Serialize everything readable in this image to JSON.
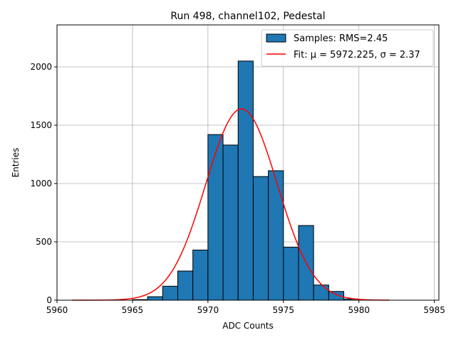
{
  "chart_data": {
    "type": "bar",
    "title": "Run 498, channel102, Pedestal",
    "xlabel": "ADC Counts",
    "ylabel": "Entries",
    "xlim": [
      5960,
      5985.3
    ],
    "ylim": [
      0,
      2360
    ],
    "xticks": [
      5960,
      5965,
      5970,
      5975,
      5980,
      5985
    ],
    "yticks": [
      0,
      500,
      1000,
      1500,
      2000
    ],
    "grid": true,
    "legend_position": "top-right",
    "colors": {
      "bar_fill": "#1f77b4",
      "bar_edge": "#000000",
      "fit_line": "#ff0000",
      "grid": "#b0b0b0"
    },
    "series": [
      {
        "name": "Samples: RMS=2.45",
        "kind": "histogram",
        "bins": [
          {
            "x0": 5965,
            "x1": 5966,
            "value": 5
          },
          {
            "x0": 5966,
            "x1": 5967,
            "value": 30
          },
          {
            "x0": 5967,
            "x1": 5968,
            "value": 120
          },
          {
            "x0": 5968,
            "x1": 5969,
            "value": 250
          },
          {
            "x0": 5969,
            "x1": 5970,
            "value": 430
          },
          {
            "x0": 5970,
            "x1": 5971,
            "value": 1420
          },
          {
            "x0": 5971,
            "x1": 5972,
            "value": 1330
          },
          {
            "x0": 5972,
            "x1": 5973,
            "value": 2050
          },
          {
            "x0": 5973,
            "x1": 5974,
            "value": 1060
          },
          {
            "x0": 5974,
            "x1": 5975,
            "value": 1110
          },
          {
            "x0": 5975,
            "x1": 5976,
            "value": 455
          },
          {
            "x0": 5976,
            "x1": 5977,
            "value": 640
          },
          {
            "x0": 5977,
            "x1": 5978,
            "value": 130
          },
          {
            "x0": 5978,
            "x1": 5979,
            "value": 75
          },
          {
            "x0": 5979,
            "x1": 5980,
            "value": 10
          }
        ]
      },
      {
        "name": "Fit: μ = 5972.225, σ = 2.37",
        "kind": "gaussian",
        "mu": 5972.225,
        "sigma": 2.37,
        "amplitude": 1640,
        "x_range": [
          5961,
          5982
        ]
      }
    ]
  }
}
